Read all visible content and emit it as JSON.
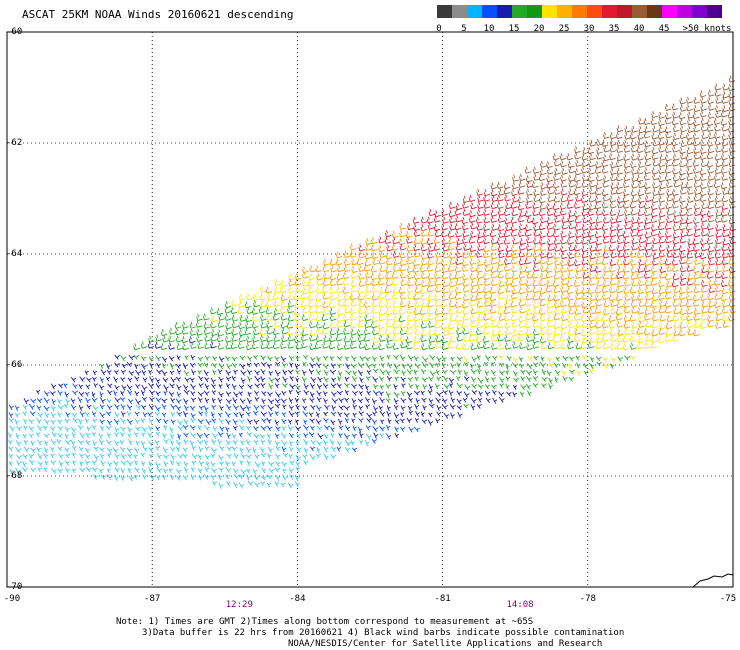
{
  "title": "ASCAT 25KM NOAA Winds 20160621 descending",
  "legend": {
    "labels": [
      "0",
      "5",
      "10",
      "15",
      "20",
      "25",
      "30",
      "35",
      "40",
      "45",
      ">50 knots"
    ],
    "colors": [
      "#3a3a3a",
      "#8c8c8c",
      "#00b4ff",
      "#0050ff",
      "#1a1aaa",
      "#22aa22",
      "#119911",
      "#ffe400",
      "#ffb000",
      "#ff7a00",
      "#ff4a10",
      "#e01830",
      "#c01828",
      "#9a5c34",
      "#6a3818",
      "#ff00ff",
      "#c000e0",
      "#8000d0",
      "#4a0090"
    ]
  },
  "map": {
    "lat_labels": [
      "-60",
      "-62",
      "-64",
      "-66",
      "-68",
      "-70"
    ],
    "lon_labels": [
      "-90",
      "-87",
      "-84",
      "-81",
      "-78",
      "-75"
    ],
    "lat_values": [
      -60,
      -62,
      -64,
      -66,
      -68,
      -70
    ],
    "lon_values": [
      -90,
      -87,
      -84,
      -81,
      -78,
      -75
    ],
    "lat_range": [
      -70,
      -60
    ],
    "lon_range": [
      -90,
      -75
    ],
    "gridlines": true,
    "times": [
      {
        "label": "12:29",
        "lon": -85.2
      },
      {
        "label": "14:08",
        "lon": -79.4
      }
    ],
    "wind_speed_bands": [
      {
        "speed_kt": 5,
        "color": "#33ccee"
      },
      {
        "speed_kt": 10,
        "color": "#0050ff"
      },
      {
        "speed_kt": 12,
        "color": "#1a1aaa"
      },
      {
        "speed_kt": 17,
        "color": "#22aa22"
      },
      {
        "speed_kt": 22,
        "color": "#ffe400"
      },
      {
        "speed_kt": 26,
        "color": "#ff9a00"
      },
      {
        "speed_kt": 32,
        "color": "#e01830"
      },
      {
        "speed_kt": 38,
        "color": "#9a5c34"
      }
    ]
  },
  "notes": {
    "line1": "Note: 1) Times are GMT 2)Times along bottom correspond to measurement at ~65S",
    "line2": "3)Data buffer is 22 hrs from 20160621 4) Black wind barbs indicate possible contamination",
    "line3": "NOAA/NESDIS/Center for Satellite Applications and Research"
  }
}
